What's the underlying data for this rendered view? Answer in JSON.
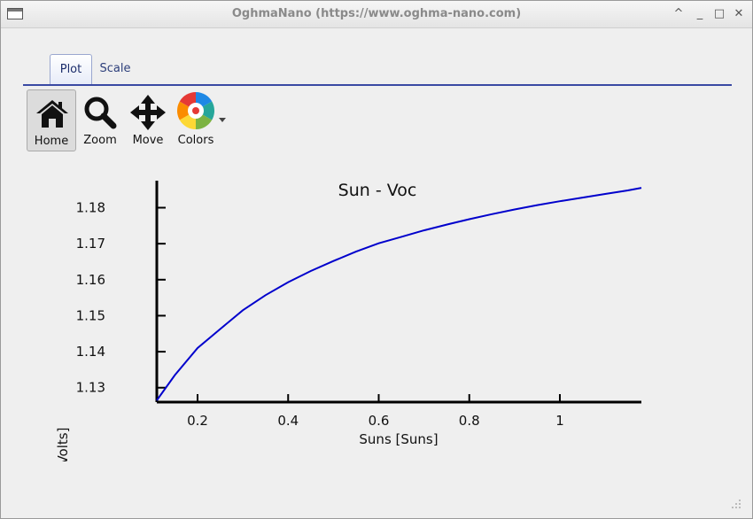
{
  "window": {
    "title": "OghmaNano (https://www.oghma-nano.com)",
    "controls": {
      "minimize": "_",
      "maximize": "□",
      "close": "✕",
      "shade": "^"
    }
  },
  "tabs": [
    {
      "label": "Plot",
      "active": true
    },
    {
      "label": "Scale",
      "active": false
    }
  ],
  "toolbar": {
    "home_label": "Home",
    "zoom_label": "Zoom",
    "move_label": "Move",
    "colors_label": "Colors",
    "home_icon": "home-icon",
    "zoom_icon": "magnifier-icon",
    "move_icon": "move-arrows-icon",
    "colors_icon": "color-wheel-icon"
  },
  "chart_data": {
    "type": "line",
    "title": "Sun - Voc",
    "xlabel": "Suns [Suns]",
    "ylabel": "V_{oc} [Volts]",
    "xlim": [
      0.11,
      1.18
    ],
    "ylim": [
      1.126,
      1.1875
    ],
    "x_ticks": [
      0.2,
      0.4,
      0.6,
      0.8,
      1
    ],
    "x_tick_labels": [
      "0.2",
      "0.4",
      "0.6",
      "0.8",
      "1"
    ],
    "y_ticks": [
      1.13,
      1.14,
      1.15,
      1.16,
      1.17,
      1.18
    ],
    "y_tick_labels": [
      "1.13",
      "1.14",
      "1.15",
      "1.16",
      "1.17",
      "1.18"
    ],
    "grid": false,
    "series": [
      {
        "color": "#0000cc",
        "x": [
          0.11,
          0.15,
          0.2,
          0.25,
          0.3,
          0.35,
          0.4,
          0.45,
          0.5,
          0.55,
          0.6,
          0.65,
          0.7,
          0.75,
          0.8,
          0.85,
          0.9,
          0.95,
          1.0,
          1.05,
          1.1,
          1.15,
          1.18
        ],
        "y": [
          1.1265,
          1.1335,
          1.141,
          1.1463,
          1.1515,
          1.1557,
          1.1593,
          1.1624,
          1.1652,
          1.1678,
          1.1701,
          1.1719,
          1.1737,
          1.1753,
          1.1768,
          1.1782,
          1.1795,
          1.1807,
          1.1818,
          1.1828,
          1.1838,
          1.1848,
          1.1855
        ]
      }
    ]
  }
}
